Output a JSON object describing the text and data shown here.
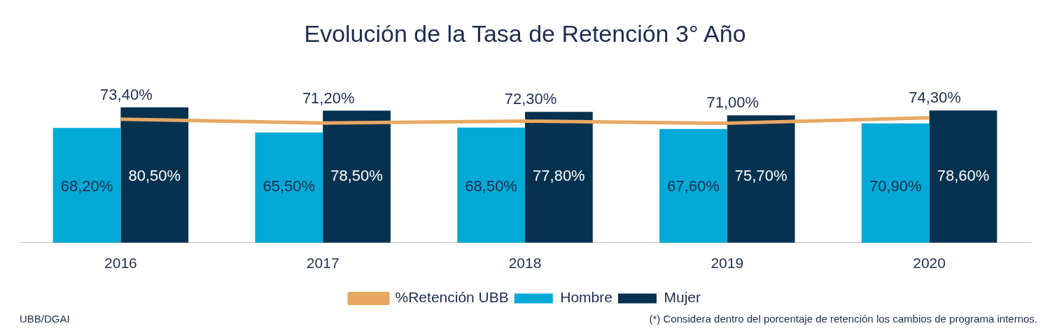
{
  "chart_data": {
    "type": "bar",
    "title": "Evolución de la Tasa de Retención 3° Año",
    "categories": [
      "2016",
      "2017",
      "2018",
      "2019",
      "2020"
    ],
    "series": [
      {
        "name": "Hombre",
        "color": "#00a9d6",
        "values": [
          68.2,
          65.5,
          68.5,
          67.6,
          70.9
        ],
        "value_labels": [
          "68,20%",
          "65,50%",
          "68,50%",
          "67,60%",
          "70,90%"
        ]
      },
      {
        "name": "Mujer",
        "color": "#06324f",
        "values": [
          80.5,
          78.5,
          77.8,
          75.7,
          78.6
        ],
        "value_labels": [
          "80,50%",
          "78,50%",
          "77,80%",
          "75,70%",
          "78,60%"
        ]
      },
      {
        "name": "%Retención UBB",
        "type": "line",
        "color": "#e8a862",
        "marker": "none",
        "values": [
          73.4,
          71.2,
          72.3,
          71.0,
          74.3
        ],
        "value_labels": [
          "73,40%",
          "71,20%",
          "72,30%",
          "71,00%",
          "74,30%"
        ]
      }
    ],
    "grid": false,
    "legend": "bottom",
    "annotations": [
      "UBB/DGAI",
      "(*) Considera dentro del porcentaje de retención los cambios de programa internos."
    ]
  }
}
